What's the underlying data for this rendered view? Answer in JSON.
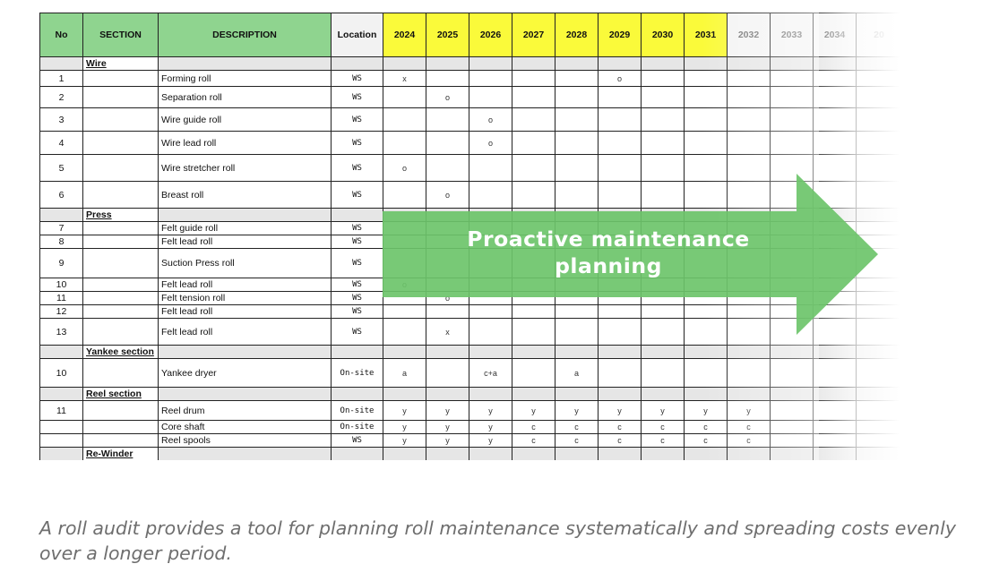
{
  "headers": {
    "no": "No",
    "section": "SECTION",
    "description": "DESCRIPTION",
    "location": "Location",
    "years": [
      "2024",
      "2025",
      "2026",
      "2027",
      "2028",
      "2029",
      "2030",
      "2031",
      "2032",
      "2033",
      "2034",
      "20"
    ]
  },
  "rows": [
    {
      "type": "section",
      "name": "Wire"
    },
    {
      "type": "item",
      "no": "1",
      "desc": "Forming roll",
      "loc": "WS",
      "h": 18,
      "marks": [
        "x",
        "",
        "",
        "",
        "",
        "o",
        "",
        "",
        "",
        "",
        "",
        ""
      ]
    },
    {
      "type": "item",
      "no": "2",
      "desc": "Separation roll",
      "loc": "WS",
      "h": 24,
      "marks": [
        "",
        "o",
        "",
        "",
        "",
        "",
        "",
        "",
        "",
        "",
        "",
        ""
      ]
    },
    {
      "type": "item",
      "no": "3",
      "desc": "Wire guide roll",
      "loc": "WS",
      "h": 26,
      "marks": [
        "",
        "",
        "o",
        "",
        "",
        "",
        "",
        "",
        "",
        "",
        "",
        ""
      ]
    },
    {
      "type": "item",
      "no": "4",
      "desc": "Wire lead roll",
      "loc": "WS",
      "h": 26,
      "marks": [
        "",
        "",
        "o",
        "",
        "",
        "",
        "",
        "",
        "",
        "",
        "",
        ""
      ]
    },
    {
      "type": "item",
      "no": "5",
      "desc": "Wire stretcher roll",
      "loc": "WS",
      "h": 30,
      "marks": [
        "o",
        "",
        "",
        "",
        "",
        "",
        "",
        "",
        "",
        "",
        "",
        ""
      ]
    },
    {
      "type": "item",
      "no": "6",
      "desc": "Breast roll",
      "loc": "WS",
      "h": 30,
      "marks": [
        "",
        "o",
        "",
        "",
        "",
        "",
        "",
        "",
        "",
        "",
        "",
        ""
      ]
    },
    {
      "type": "section",
      "name": "Press"
    },
    {
      "type": "item",
      "no": "7",
      "desc": "Felt guide roll",
      "loc": "WS",
      "h": 15,
      "marks": [
        "",
        "",
        "",
        "",
        "",
        "",
        "",
        "",
        "",
        "",
        "",
        ""
      ]
    },
    {
      "type": "item",
      "no": "8",
      "desc": "Felt lead roll",
      "loc": "WS",
      "h": 15,
      "marks": [
        "",
        "",
        "",
        "",
        "",
        "",
        "",
        "",
        "",
        "",
        "",
        ""
      ]
    },
    {
      "type": "item",
      "no": "9",
      "desc": "Suction Press roll",
      "loc": "WS",
      "h": 33,
      "marks": [
        "",
        "",
        "",
        "",
        "",
        "",
        "",
        "",
        "",
        "",
        "",
        ""
      ]
    },
    {
      "type": "item",
      "no": "10",
      "desc": "Felt lead roll",
      "loc": "WS",
      "h": 15,
      "marks": [
        "o",
        "",
        "",
        "",
        "",
        "",
        "",
        "",
        "",
        "",
        "",
        ""
      ]
    },
    {
      "type": "item",
      "no": "11",
      "desc": "Felt tension roll",
      "loc": "WS",
      "h": 15,
      "marks": [
        "",
        "o",
        "",
        "",
        "",
        "",
        "",
        "",
        "",
        "",
        "",
        ""
      ]
    },
    {
      "type": "item",
      "no": "12",
      "desc": "Felt lead roll",
      "loc": "WS",
      "h": 15,
      "marks": [
        "",
        "",
        "",
        "",
        "",
        "",
        "",
        "",
        "",
        "",
        "",
        ""
      ]
    },
    {
      "type": "item",
      "no": "13",
      "desc": "Felt lead roll",
      "loc": "WS",
      "h": 30,
      "marks": [
        "",
        "x",
        "",
        "",
        "",
        "",
        "",
        "",
        "",
        "",
        "",
        ""
      ]
    },
    {
      "type": "section",
      "name": "Yankee section"
    },
    {
      "type": "item",
      "no": "10",
      "desc": "Yankee dryer",
      "loc": "On-site",
      "h": 32,
      "marks": [
        "a",
        "",
        "c+a",
        "",
        "a",
        "",
        "",
        "",
        "",
        "",
        "",
        ""
      ]
    },
    {
      "type": "section",
      "name": "Reel section"
    },
    {
      "type": "item",
      "no": "11",
      "desc": "Reel drum",
      "loc": "On-site",
      "h": 22,
      "marks": [
        "y",
        "y",
        "y",
        "y",
        "y",
        "y",
        "y",
        "y",
        "y",
        "",
        "",
        ""
      ]
    },
    {
      "type": "item",
      "no": "",
      "desc": "Core shaft",
      "loc": "On-site",
      "h": 15,
      "marks": [
        "y",
        "y",
        "y",
        "c",
        "c",
        "c",
        "c",
        "c",
        "c",
        "",
        "",
        ""
      ]
    },
    {
      "type": "item",
      "no": "",
      "desc": "Reel spools",
      "loc": "WS",
      "h": 15,
      "marks": [
        "y",
        "y",
        "y",
        "c",
        "c",
        "c",
        "c",
        "c",
        "c",
        "",
        "",
        ""
      ]
    },
    {
      "type": "section",
      "name": "Re-Winder"
    }
  ],
  "arrow": {
    "line1": "Proactive maintenance",
    "line2": "planning",
    "color": "#6cc46a"
  },
  "colors": {
    "header_green": "#8fd48f",
    "header_year_yellow": "#fafa3a",
    "section_gray": "#e6e6e6"
  },
  "caption": "A roll audit provides a tool for planning roll maintenance systematically and spreading costs evenly over a longer period."
}
